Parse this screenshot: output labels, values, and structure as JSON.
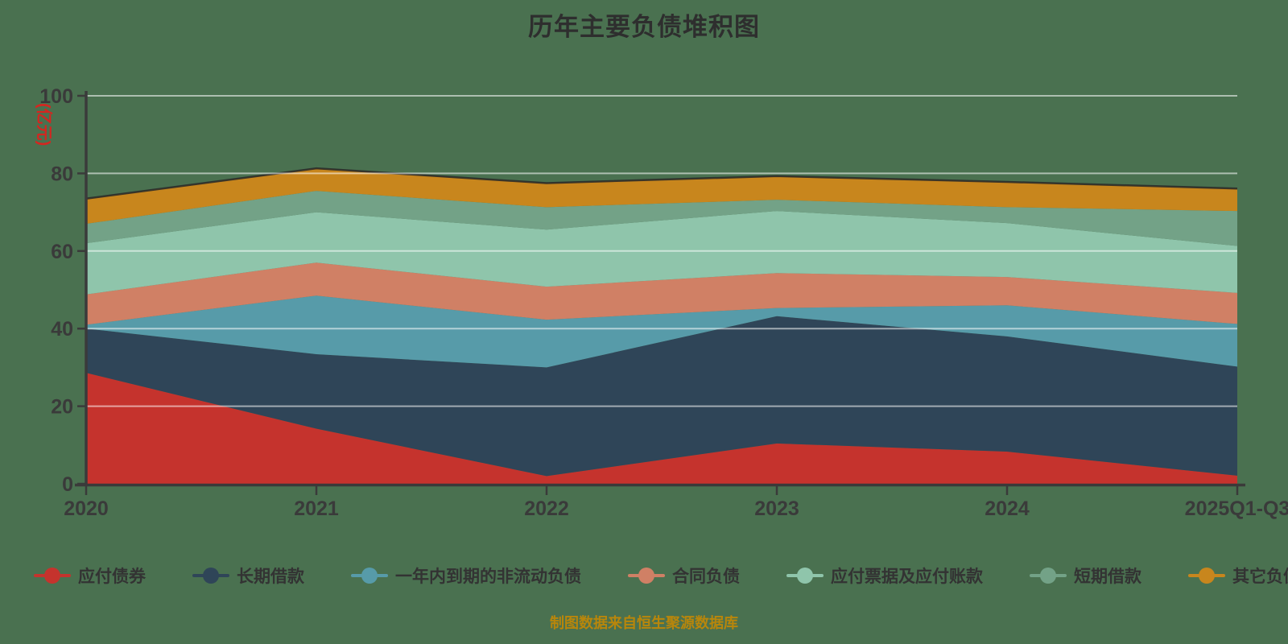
{
  "title": "历年主要负债堆积图",
  "footer": {
    "text": "制图数据来自恒生聚源数据库"
  },
  "y_axis": {
    "unit": "(亿元)",
    "ticks": [
      0,
      20,
      40,
      60,
      80,
      100
    ]
  },
  "x_axis": {
    "ticks": [
      "2020",
      "2021",
      "2022",
      "2023",
      "2024",
      "2025Q1-Q3"
    ]
  },
  "colors": {
    "background": "#4A7150",
    "title": "#2e2e2e",
    "axis": "#3a3a3a",
    "tick_label": "#3a3a3a",
    "gridline": "rgba(255,255,255,0.55)",
    "unit_label": "#d42620",
    "footer": "#b8860b",
    "stack_top_stroke": "rgba(40,40,40,0.85)"
  },
  "chart_data": {
    "type": "area",
    "stacked": true,
    "title": "历年主要负债堆积图",
    "ylabel": "(亿元)",
    "xlabel": "",
    "ylim": [
      0,
      100
    ],
    "grid": true,
    "legend_position": "bottom",
    "categories": [
      "2020",
      "2021",
      "2022",
      "2023",
      "2024",
      "2025Q1-Q3"
    ],
    "series": [
      {
        "name": "应付债券",
        "color": "#c5332d",
        "values": [
          28.6,
          14.2,
          2.0,
          10.4,
          8.3,
          2.1
        ]
      },
      {
        "name": "长期借款",
        "color": "#2f4558",
        "values": [
          11.4,
          19.2,
          28.0,
          32.8,
          29.7,
          28.1
        ]
      },
      {
        "name": "一年内到期的非流动负债",
        "color": "#579ba9",
        "values": [
          1.0,
          15.1,
          12.3,
          2.1,
          8.0,
          11.0
        ]
      },
      {
        "name": "合同负债",
        "color": "#d08065",
        "values": [
          7.8,
          8.5,
          8.5,
          9.0,
          7.3,
          8.0
        ]
      },
      {
        "name": "应付票据及应付账款",
        "color": "#8fc5ab",
        "values": [
          13.2,
          13.0,
          14.7,
          16.0,
          13.9,
          12.1
        ]
      },
      {
        "name": "短期借款",
        "color": "#73a287",
        "values": [
          5.0,
          5.5,
          5.8,
          2.9,
          4.1,
          9.0
        ]
      },
      {
        "name": "其它负债",
        "color": "#c8861d",
        "values": [
          6.5,
          5.8,
          6.2,
          6.1,
          6.5,
          5.8
        ]
      }
    ],
    "stack_totals": [
      73.5,
      81.3,
      77.5,
      79.3,
      77.8,
      76.1
    ]
  }
}
